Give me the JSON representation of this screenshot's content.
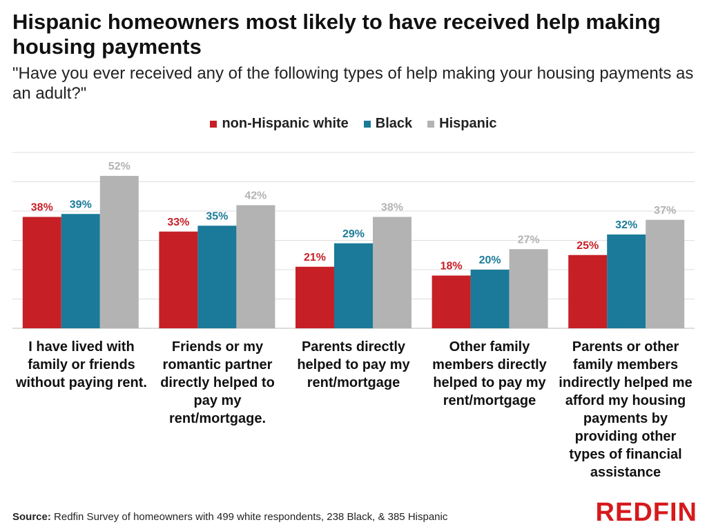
{
  "title": "Hispanic homeowners most likely to have received help making housing payments",
  "subtitle": "\"Have you ever received any of the following types of help making your housing payments as an adult?\"",
  "source_label": "Source:",
  "source_text": "Redfin Survey of homeowners with 499 white respondents, 238 Black, & 385 Hispanic",
  "logo_text": "REDFIN",
  "colors": {
    "white": "#c62026",
    "black": "#1b7a99",
    "hispanic": "#b3b3b3"
  },
  "chart_data": {
    "type": "bar",
    "title": "Hispanic homeowners most likely to have received help making housing payments",
    "categories": [
      "I have lived with family or friends without paying rent.",
      "Friends or my romantic partner directly helped to pay my rent/mortgage.",
      "Parents directly helped to pay my rent/mortgage",
      "Other family members directly helped to pay my rent/mortgage",
      "Parents or other family members indirectly helped me afford my housing payments by providing other types of financial assistance"
    ],
    "series": [
      {
        "name": "non-Hispanic white",
        "values": [
          38,
          33,
          21,
          18,
          25
        ],
        "labels": [
          "38%",
          "33%",
          "21%",
          "18%",
          "25%"
        ]
      },
      {
        "name": "Black",
        "values": [
          39,
          35,
          29,
          20,
          32
        ],
        "labels": [
          "39%",
          "35%",
          "29%",
          "20%",
          "32%"
        ]
      },
      {
        "name": "Hispanic",
        "values": [
          52,
          42,
          38,
          27,
          37
        ],
        "labels": [
          "52%",
          "42%",
          "38%",
          "27%",
          "37%"
        ]
      }
    ],
    "ylim": [
      0,
      60
    ],
    "grid": true,
    "legend": "top-center"
  }
}
